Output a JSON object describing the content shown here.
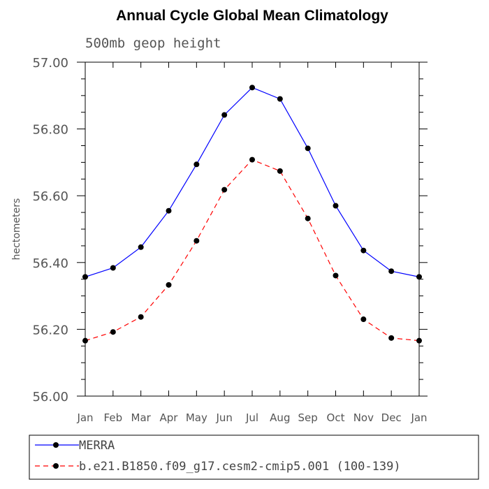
{
  "chart_data": {
    "type": "line",
    "title": "Annual Cycle Global Mean Climatology",
    "subtitle": "500mb geop height",
    "xlabel": "",
    "ylabel": "hectometers",
    "categories": [
      "Jan",
      "Feb",
      "Mar",
      "Apr",
      "May",
      "Jun",
      "Jul",
      "Aug",
      "Sep",
      "Oct",
      "Nov",
      "Dec",
      "Jan"
    ],
    "ylim": [
      56.0,
      57.0
    ],
    "yticks": [
      "56.00",
      "56.20",
      "56.40",
      "56.60",
      "56.80",
      "57.00"
    ],
    "grid": false,
    "legend_position": "bottom",
    "series": [
      {
        "name": "MERRA",
        "color": "#0000ff",
        "line_style": "solid",
        "marker": "circle",
        "values": [
          56.357,
          56.384,
          56.446,
          56.555,
          56.694,
          56.842,
          56.924,
          56.89,
          56.742,
          56.57,
          56.436,
          56.374,
          56.357
        ]
      },
      {
        "name": "b.e21.B1850.f09_g17.cesm2-cmip5.001 (100-139)",
        "color": "#ff0000",
        "line_style": "dashed",
        "marker": "circle",
        "values": [
          56.166,
          56.192,
          56.237,
          56.333,
          56.465,
          56.618,
          56.708,
          56.674,
          56.532,
          56.361,
          56.23,
          56.174,
          56.166
        ]
      }
    ]
  }
}
